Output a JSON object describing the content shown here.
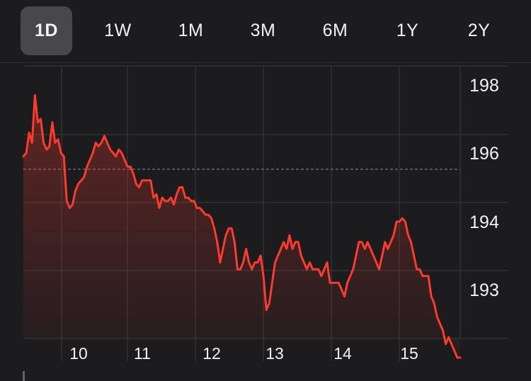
{
  "ranges": [
    {
      "label": "1D",
      "active": true
    },
    {
      "label": "1W",
      "active": false
    },
    {
      "label": "1M",
      "active": false
    },
    {
      "label": "3M",
      "active": false
    },
    {
      "label": "6M",
      "active": false
    },
    {
      "label": "1Y",
      "active": false
    },
    {
      "label": "2Y",
      "active": false
    }
  ],
  "colors": {
    "line": "#ff3b30",
    "background": "#1c1c1e",
    "grid": "#3a3a3c",
    "tab_active": "#48484a"
  },
  "chart_data": {
    "type": "line",
    "title": "",
    "xlabel": "",
    "ylabel": "",
    "ytick_labels": [
      "198",
      "196",
      "194",
      "193"
    ],
    "xtick_labels": [
      "10",
      "11",
      "12",
      "13",
      "14",
      "15"
    ],
    "reference_line": "previous close (dashed)",
    "grid": true,
    "series": [
      {
        "values": [
          195.9,
          196.0,
          196.6,
          196.3,
          197.7,
          196.9,
          197.0,
          196.3,
          196.1,
          196.2,
          196.9,
          196.3,
          196.4,
          196.0,
          195.9,
          194.6,
          194.4,
          194.5,
          194.9,
          195.1,
          195.2,
          195.3,
          195.6,
          195.8,
          196.0,
          196.3,
          196.2,
          196.3,
          196.5,
          196.3,
          196.1,
          196.0,
          195.9,
          196.1,
          196.0,
          195.8,
          195.6,
          195.6,
          195.4,
          195.1,
          195.0,
          195.2,
          195.2,
          195.2,
          195.2,
          194.7,
          194.8,
          194.4,
          194.7,
          194.6,
          194.6,
          194.7,
          194.5,
          194.8,
          195.0,
          195.0,
          194.7,
          194.7,
          194.6,
          194.6,
          194.4,
          194.4,
          194.3,
          194.2,
          194.2,
          194.1,
          193.9,
          193.7,
          193.4,
          193.6,
          193.8,
          193.9,
          193.9,
          193.7,
          193.3,
          193.3,
          193.4,
          193.6,
          193.4,
          193.3,
          193.4,
          193.4,
          193.5,
          193.2,
          192.7,
          192.8,
          193.1,
          193.4,
          193.5,
          193.6,
          193.7,
          193.6,
          193.8,
          193.6,
          193.7,
          193.7,
          193.5,
          193.4,
          193.3,
          193.4,
          193.3,
          193.3,
          193.3,
          193.2,
          193.3,
          193.4,
          193.1,
          193.1,
          193.1,
          193.1,
          193.0,
          192.9,
          193.1,
          193.2,
          193.3,
          193.5,
          193.7,
          193.7,
          193.6,
          193.7,
          193.6,
          193.5,
          193.4,
          193.3,
          193.5,
          193.7,
          193.6,
          193.7,
          193.8,
          194.0,
          194.0,
          194.1,
          194.0,
          193.8,
          193.7,
          193.5,
          193.3,
          193.3,
          193.2,
          193.2,
          193.2,
          192.9,
          192.8,
          192.6,
          192.5,
          192.4,
          192.2,
          192.3,
          192.2,
          192.1,
          192.0,
          192.0
        ]
      }
    ]
  }
}
